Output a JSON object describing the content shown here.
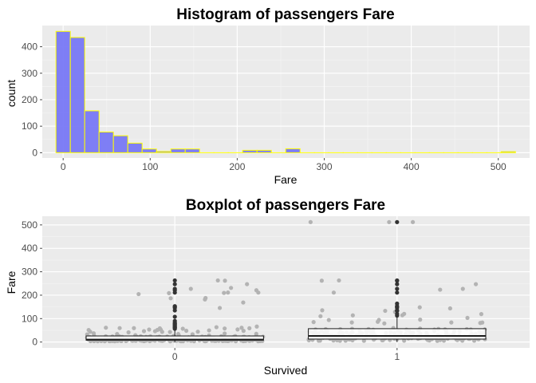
{
  "chart_data": [
    {
      "type": "bar",
      "title": "Histogram of passengers Fare",
      "xlabel": "Fare",
      "ylabel": "count",
      "xlim": [
        -24,
        536
      ],
      "ylim": [
        -20,
        480
      ],
      "x_ticks": [
        0,
        100,
        200,
        300,
        400,
        500
      ],
      "y_ticks": [
        0,
        100,
        200,
        300,
        400
      ],
      "bin_width": 16.5,
      "bin_centers": [
        0,
        16.5,
        33,
        49.5,
        66,
        82.5,
        99,
        115.5,
        132,
        148.5,
        165,
        181.5,
        198,
        214.5,
        231,
        247.5,
        264,
        280.5,
        297,
        313.5,
        330,
        346.5,
        363,
        379.5,
        396,
        412.5,
        429,
        445.5,
        462,
        478.5,
        495,
        511.5
      ],
      "values": [
        458,
        435,
        158,
        78,
        64,
        36,
        14,
        5,
        14,
        14,
        0,
        0,
        0,
        9,
        9,
        0,
        15,
        0,
        0,
        0,
        0,
        0,
        0,
        0,
        0,
        0,
        0,
        0,
        0,
        0,
        0,
        4
      ],
      "fill_color": "#7878f5",
      "outline_color": "#ffff00",
      "grid": true
    },
    {
      "type": "box",
      "title": "Boxplot of passengers Fare",
      "xlabel": "Survived",
      "ylabel": "Fare",
      "categories": [
        "0",
        "1"
      ],
      "ylim": [
        -25,
        537
      ],
      "y_ticks": [
        0,
        100,
        200,
        300,
        400,
        500
      ],
      "boxes": [
        {
          "q1": 7.9,
          "median": 10.5,
          "q3": 26,
          "whisker_low": 0,
          "whisker_high": 52,
          "outliers": [
            56.5,
            61,
            63,
            65,
            69.5,
            73.5,
            77,
            79,
            83,
            90,
            108,
            135,
            146,
            151,
            153,
            211,
            221,
            227,
            247,
            263
          ]
        },
        {
          "q1": 12.5,
          "median": 26,
          "q3": 57,
          "whisker_low": 0,
          "whisker_high": 110,
          "outliers": [
            113,
            120,
            133,
            134,
            135,
            146,
            151,
            153,
            164,
            211,
            227,
            247,
            262,
            263,
            512
          ]
        }
      ],
      "jitter_color": "#b3b3b3",
      "grid": true
    }
  ]
}
